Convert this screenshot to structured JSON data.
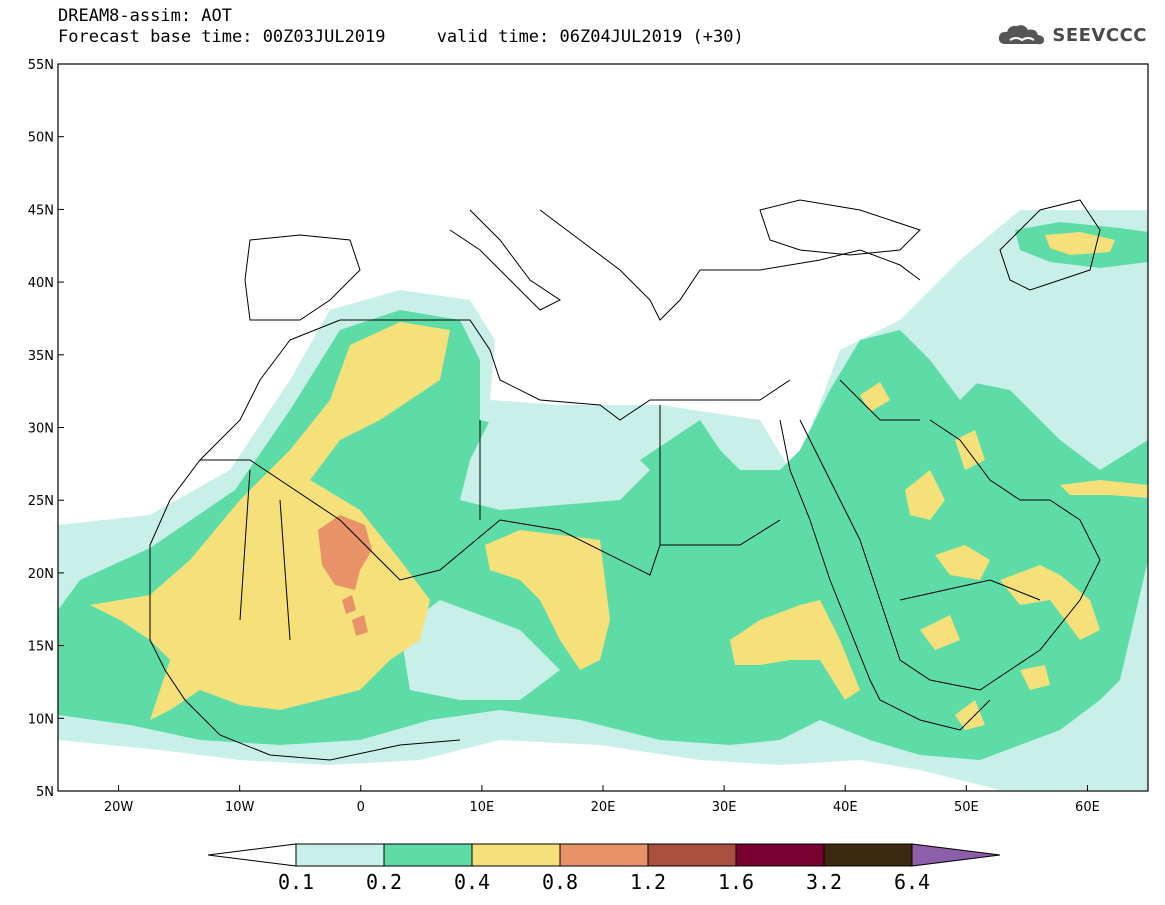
{
  "header": {
    "title_line1": "DREAM8-assim: AOT",
    "title_line2": "Forecast base time: 00Z03JUL2019     valid time: 06Z04JUL2019 (+30)",
    "logo_text": "SEEVCCC"
  },
  "map": {
    "extent": {
      "lon": [
        -25,
        65
      ],
      "lat": [
        5,
        55
      ]
    },
    "lat_ticks": [
      "55N",
      "50N",
      "45N",
      "40N",
      "35N",
      "30N",
      "25N",
      "20N",
      "15N",
      "10N",
      "5N"
    ],
    "lon_ticks": [
      "20W",
      "10W",
      "0",
      "10E",
      "20E",
      "30E",
      "40E",
      "50E",
      "60E"
    ],
    "lat_values": [
      55,
      50,
      45,
      40,
      35,
      30,
      25,
      20,
      15,
      10,
      5
    ],
    "lon_values": [
      -20,
      -10,
      0,
      10,
      20,
      30,
      40,
      50,
      60
    ]
  },
  "colorbar": {
    "labels": [
      "0.1",
      "0.2",
      "0.4",
      "0.8",
      "1.2",
      "1.6",
      "3.2",
      "6.4"
    ],
    "colors": [
      "#ffffff",
      "#c8f0e8",
      "#5edca8",
      "#f5e07a",
      "#e8926a",
      "#a9503f",
      "#7a0030",
      "#3d2810",
      "#8c5fa8"
    ]
  },
  "palette": {
    "c1": "#c8f0e8",
    "c2": "#5edca8",
    "c3": "#f5e07a",
    "c4": "#e8926a",
    "land_border": "#000000"
  }
}
